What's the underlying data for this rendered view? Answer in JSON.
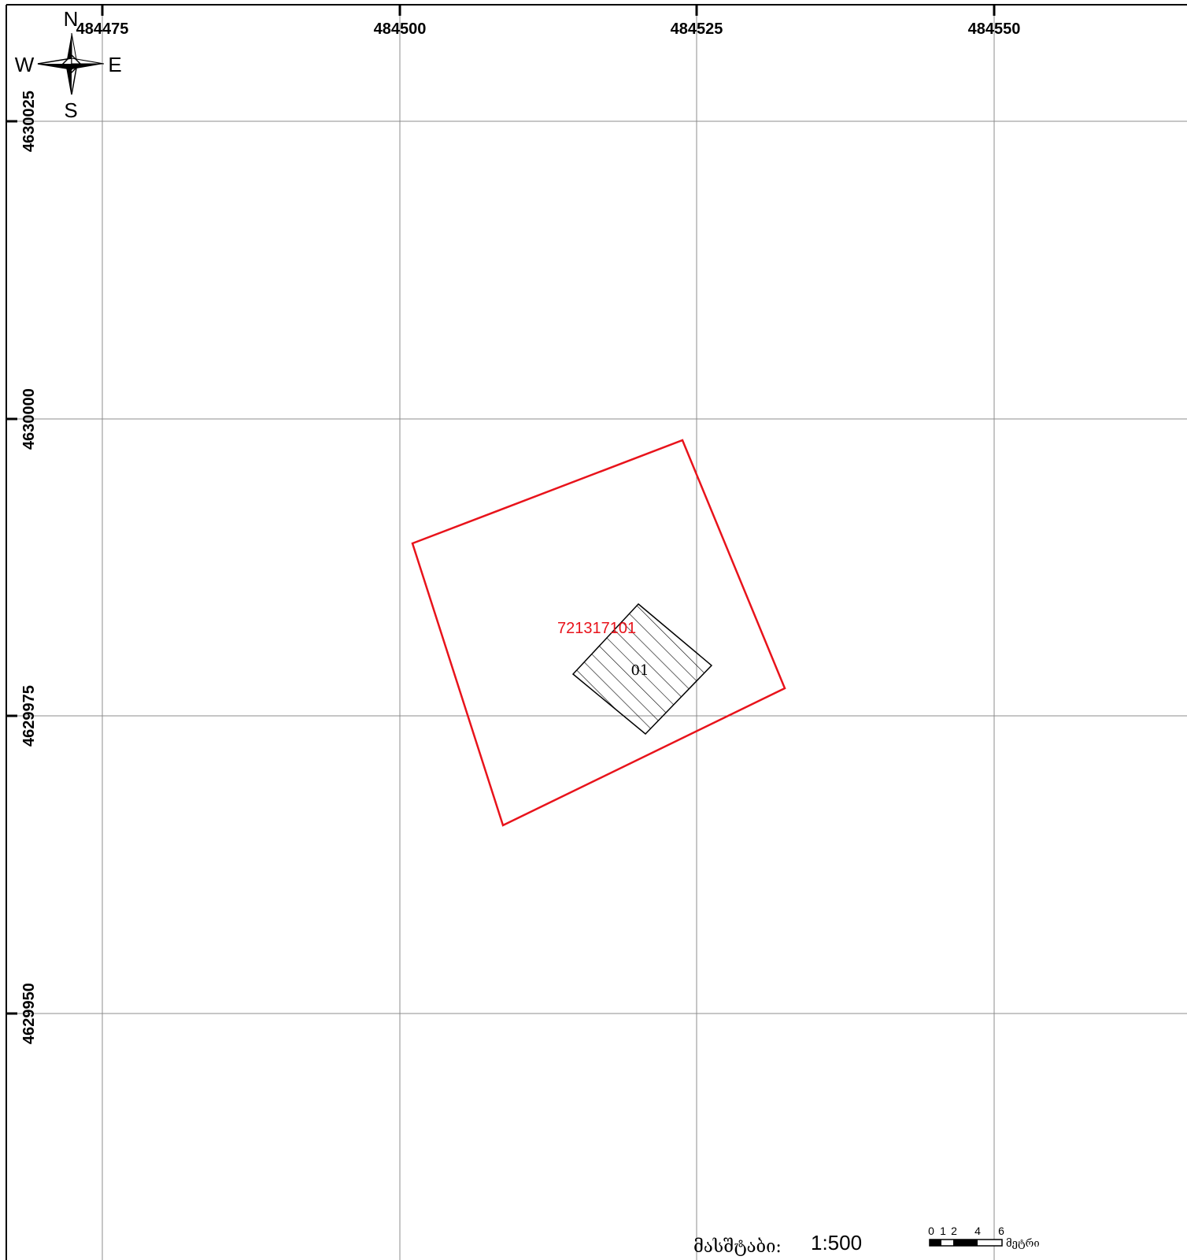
{
  "map": {
    "grid": {
      "easting_labels": [
        "484475",
        "484500",
        "484525",
        "484550"
      ],
      "northing_labels": [
        "4630025",
        "4630000",
        "4629975",
        "4629950"
      ],
      "line_color": "#8c8c8c"
    },
    "compass": {
      "north": "N",
      "south": "S",
      "east": "E",
      "west": "W",
      "icon": "compass-rose-icon"
    },
    "parcel": {
      "id_label": "721317101",
      "outline_color": "#e8131b"
    },
    "building": {
      "id_label": "01",
      "fill_pattern": "diagonal-hatch"
    },
    "scale": {
      "caption": "მასშტაბი:",
      "ratio": "1:500",
      "bar_ticks": [
        "0",
        "1",
        "2",
        "4",
        "6"
      ],
      "bar_unit": "მეტრი"
    }
  }
}
